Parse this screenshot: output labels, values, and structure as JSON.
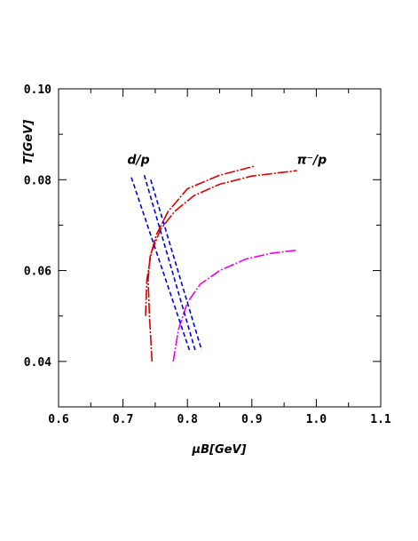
{
  "chart_data": {
    "type": "line",
    "xlabel": "μB[GeV]",
    "ylabel": "T[GeV]",
    "xlim": [
      0.6,
      1.1
    ],
    "ylim": [
      0.03,
      0.1
    ],
    "x_ticks": [
      "0.6",
      "0.7",
      "0.8",
      "0.9",
      "1.0",
      "1.1"
    ],
    "y_ticks": [
      "0.04",
      "0.06",
      "0.08",
      "0.10"
    ],
    "grid": false,
    "annotations": [
      {
        "text": "d/p",
        "x": 0.724,
        "y": 0.0835
      },
      {
        "text": "π⁻/p",
        "x": 0.993,
        "y": 0.0835
      }
    ],
    "series": [
      {
        "color": "#dd0000",
        "style": "dash-dot",
        "x": [
          0.745,
          0.741,
          0.739,
          0.742,
          0.752,
          0.77,
          0.8,
          0.85,
          0.905
        ],
        "y": [
          0.04,
          0.05,
          0.058,
          0.063,
          0.068,
          0.073,
          0.078,
          0.081,
          0.083
        ]
      },
      {
        "color": "#dd0000",
        "style": "dash-dot",
        "x": [
          0.735,
          0.737,
          0.744,
          0.758,
          0.78,
          0.81,
          0.85,
          0.9,
          0.97
        ],
        "y": [
          0.05,
          0.058,
          0.064,
          0.069,
          0.073,
          0.0765,
          0.079,
          0.0808,
          0.082
        ]
      },
      {
        "color": "#ee00ee",
        "style": "dash-dot",
        "x": [
          0.778,
          0.786,
          0.8,
          0.82,
          0.85,
          0.89,
          0.93,
          0.97
        ],
        "y": [
          0.04,
          0.047,
          0.053,
          0.057,
          0.06,
          0.0625,
          0.0638,
          0.0645
        ]
      },
      {
        "color": "#0000dd",
        "style": "dashed",
        "x": [
          0.713,
          0.803
        ],
        "y": [
          0.0805,
          0.0425
        ]
      },
      {
        "color": "#0000dd",
        "style": "dashed",
        "x": [
          0.733,
          0.813
        ],
        "y": [
          0.081,
          0.042
        ]
      },
      {
        "color": "#0000dd",
        "style": "dashed",
        "x": [
          0.743,
          0.822
        ],
        "y": [
          0.08,
          0.0425
        ]
      }
    ]
  }
}
